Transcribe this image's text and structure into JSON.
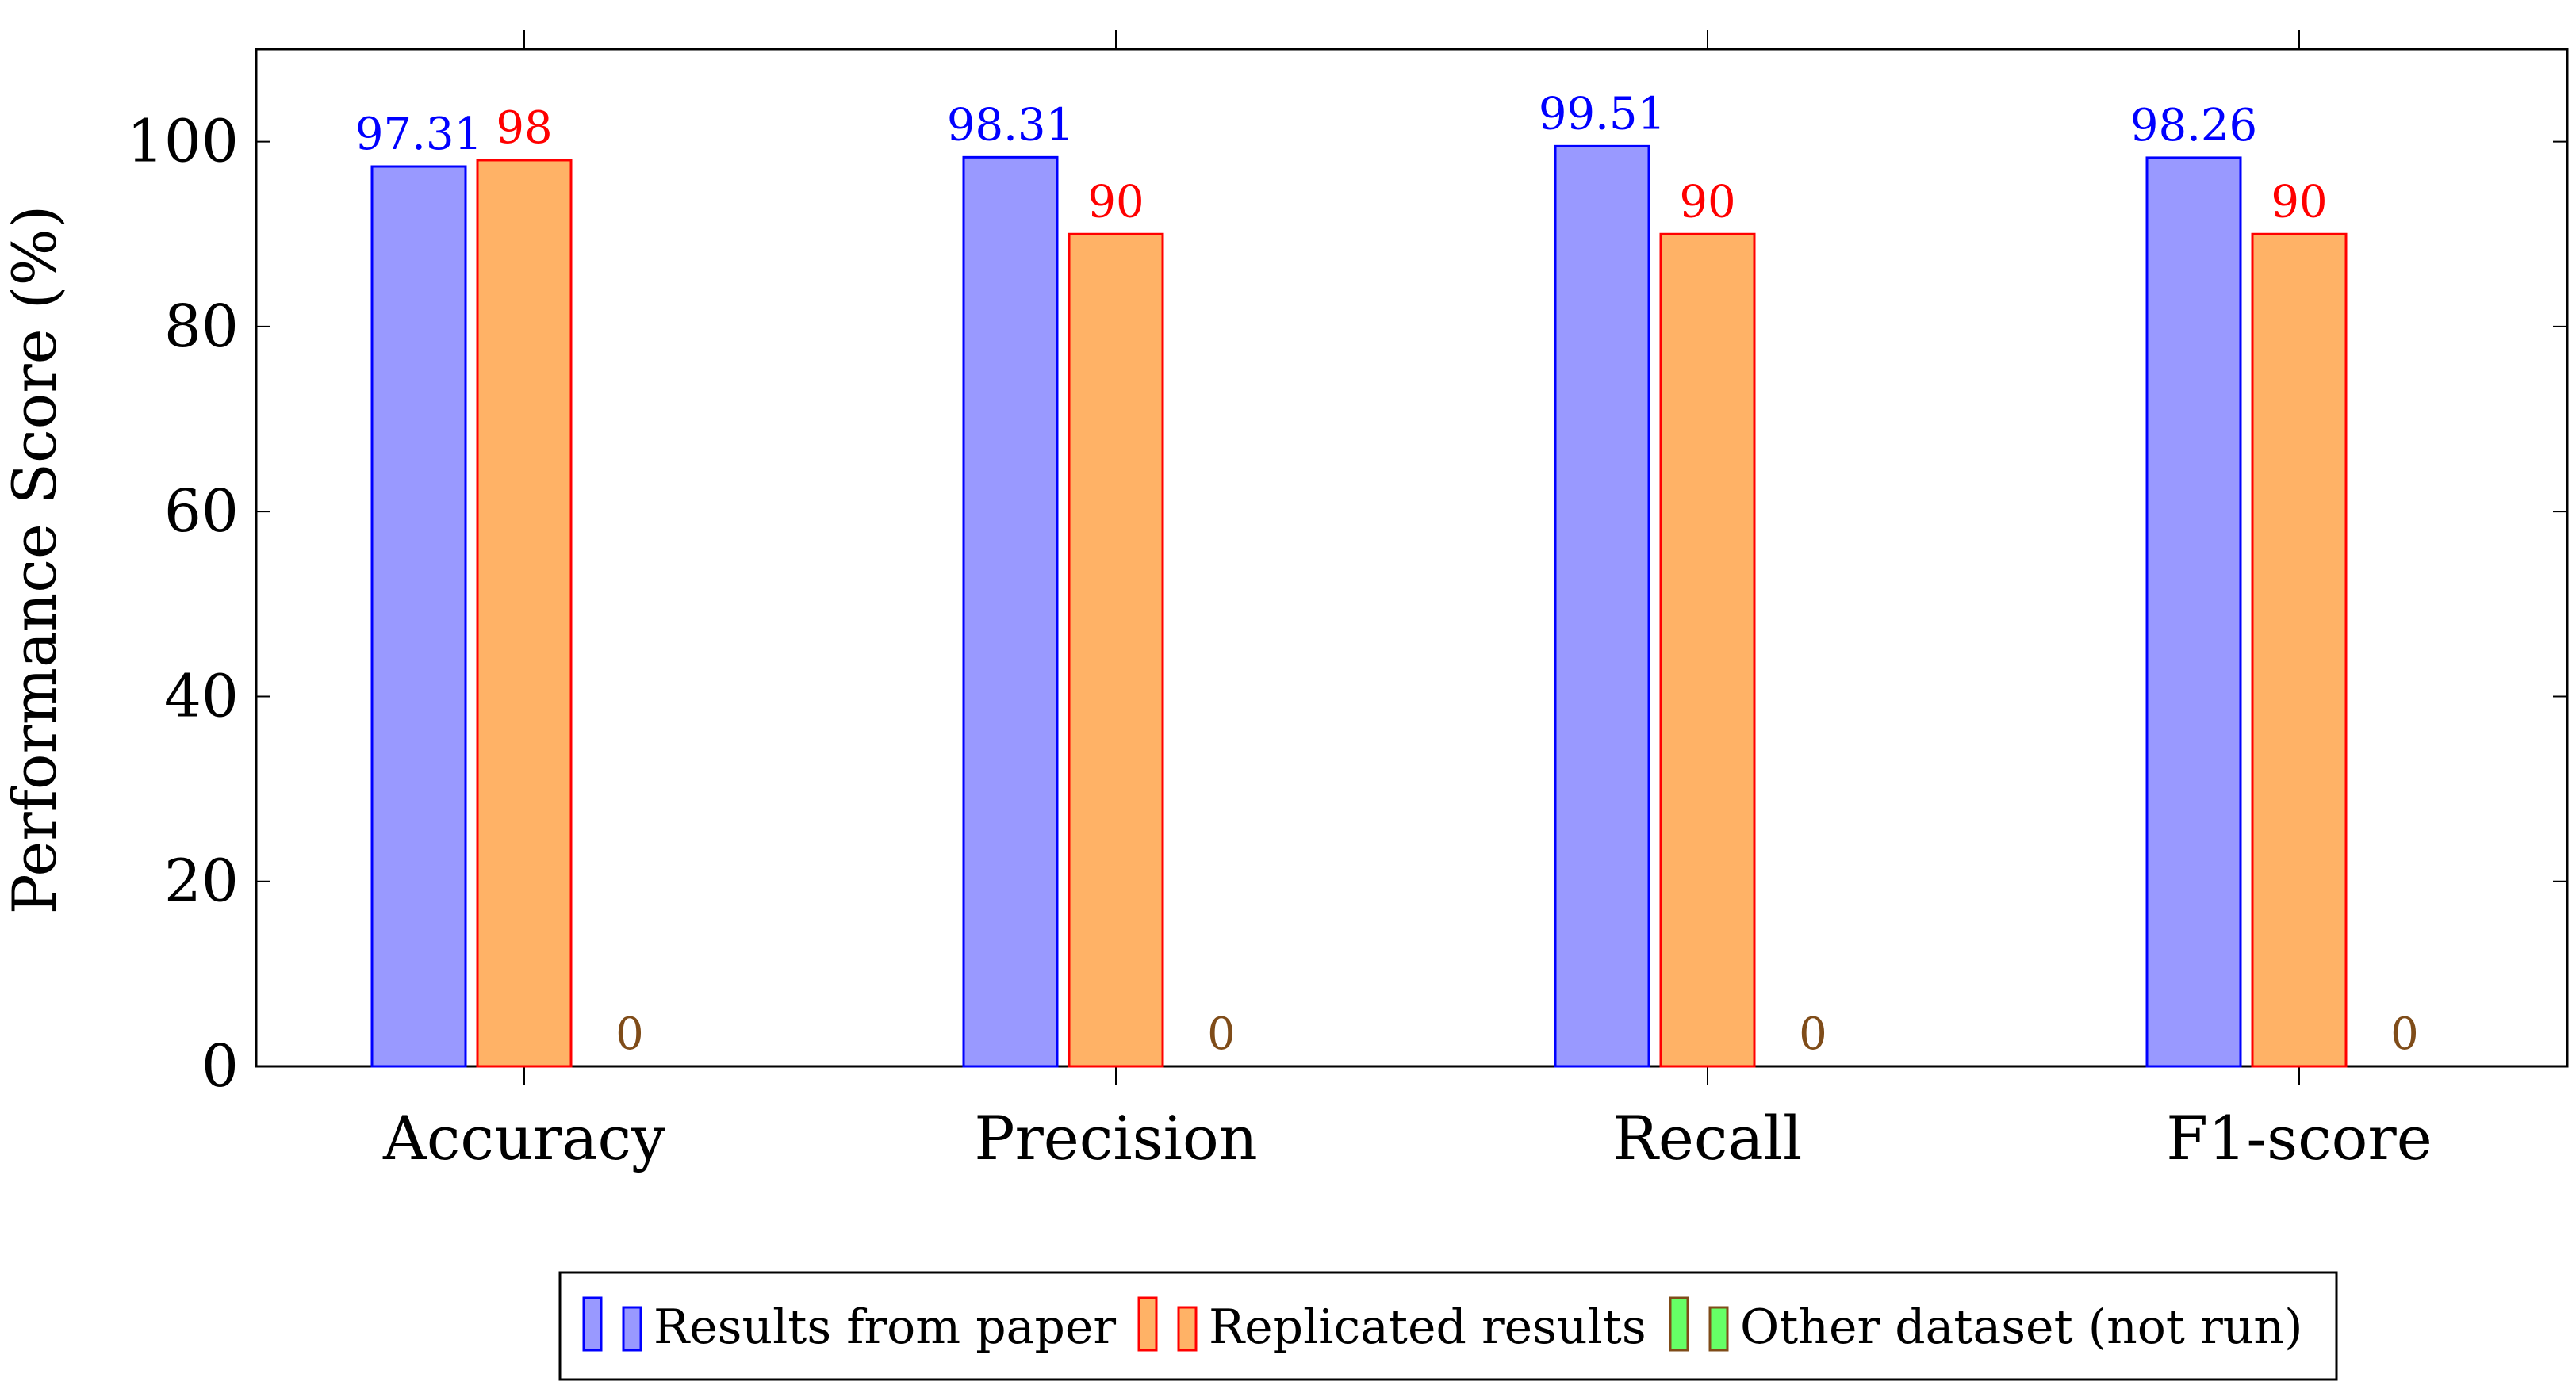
{
  "chart_data": {
    "type": "bar",
    "title": "",
    "xlabel": "",
    "ylabel": "Performance Score (%)",
    "ylim": [
      0,
      110
    ],
    "yticks": [
      0,
      20,
      40,
      60,
      80,
      100
    ],
    "categories": [
      "Accuracy",
      "Precision",
      "Recall",
      "F1-score"
    ],
    "series": [
      {
        "name": "Results from paper",
        "values": [
          97.31,
          98.31,
          99.51,
          98.26
        ],
        "labels": [
          "97.31",
          "98.31",
          "99.51",
          "98.26"
        ],
        "fill": "#9999ff",
        "stroke": "#0000ff",
        "label_color": "#0000ff"
      },
      {
        "name": "Replicated results",
        "values": [
          98,
          90,
          90,
          90
        ],
        "labels": [
          "98",
          "90",
          "90",
          "90"
        ],
        "fill": "#ffb266",
        "stroke": "#ff0000",
        "label_color": "#ff0000"
      },
      {
        "name": "Other dataset (not run)",
        "values": [
          0,
          0,
          0,
          0
        ],
        "labels": [
          "0",
          "0",
          "0",
          "0"
        ],
        "fill": "#66ff66",
        "stroke": "#7f4c19",
        "label_color": "#7f4c19"
      }
    ],
    "legend_position": "bottom-center",
    "grid": false
  }
}
